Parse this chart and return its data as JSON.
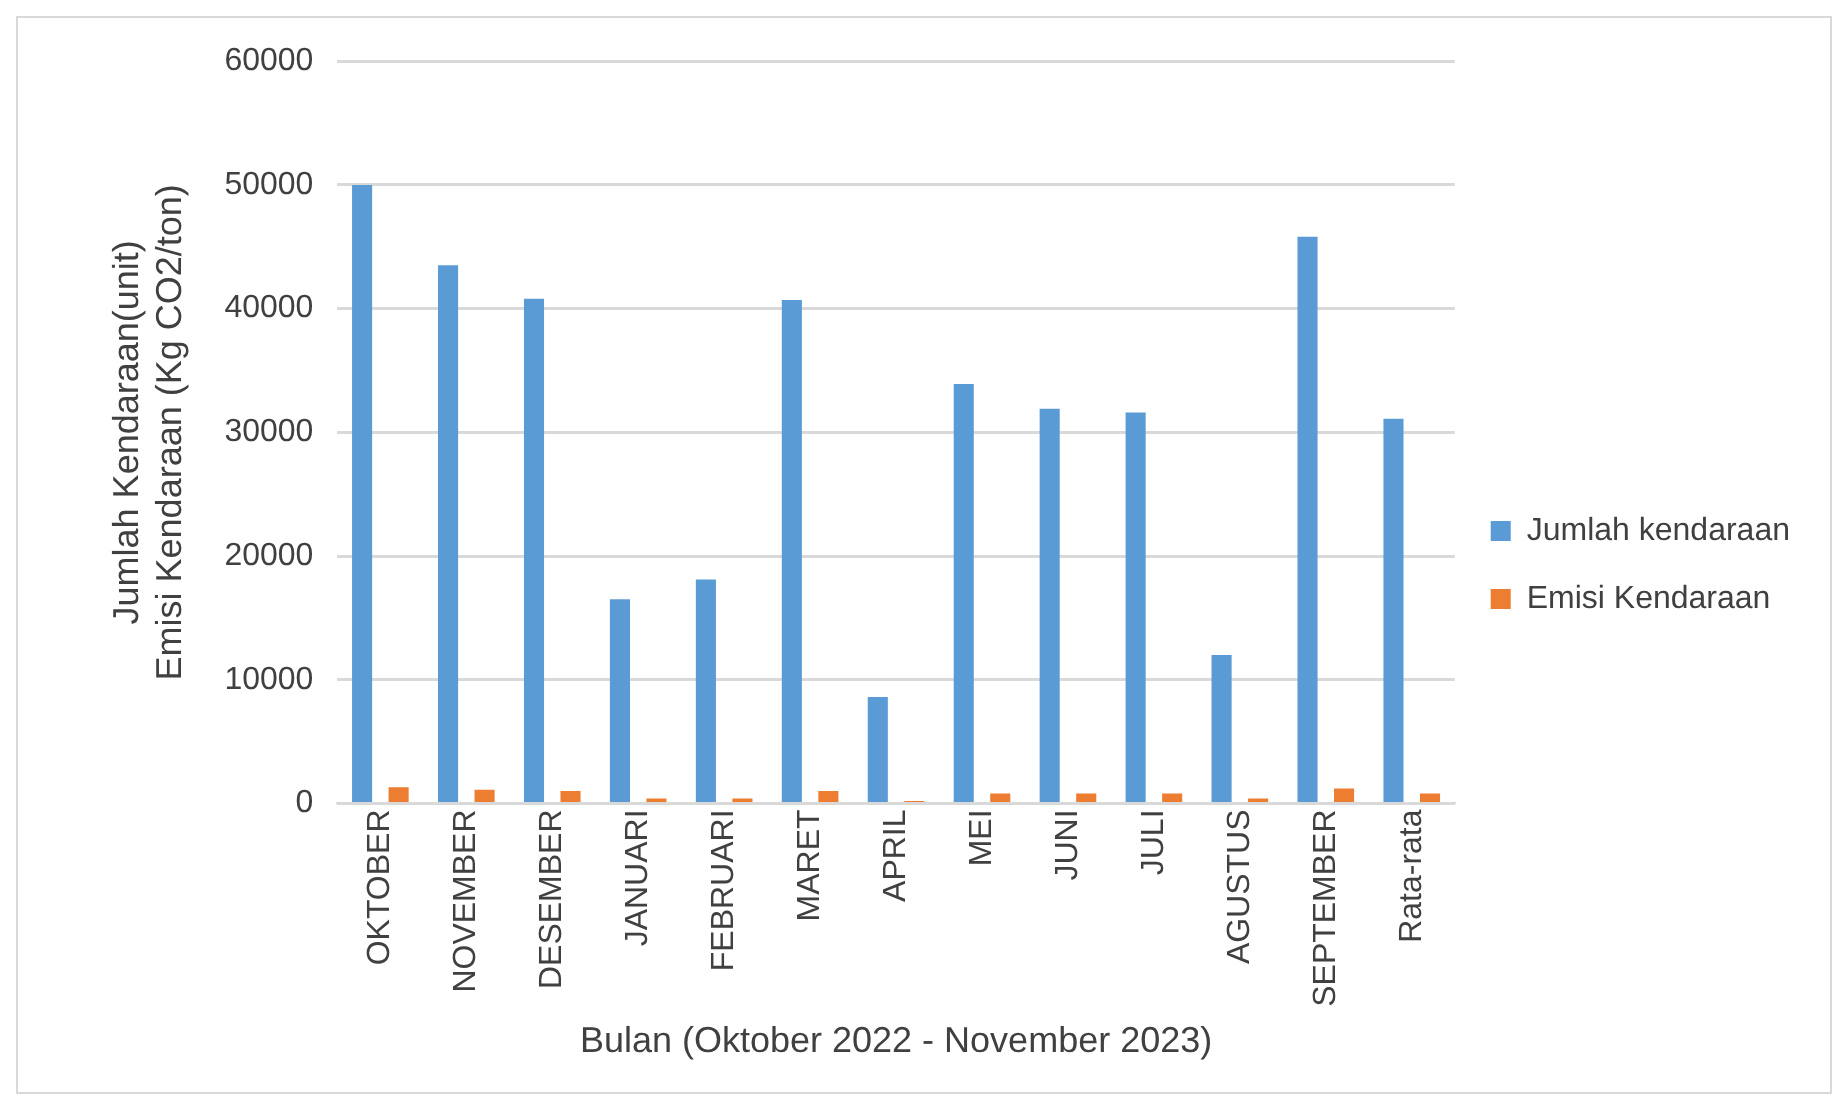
{
  "chart_data": {
    "type": "bar",
    "xlabel": "Bulan (Oktober 2022 - November 2023)",
    "ylabel": "Jumlah Kendaraan(unit)\nEmisi Kendaraan (Kg CO2/ton)",
    "categories": [
      "OKTOBER",
      "NOVEMBER",
      "DESEMBER",
      "JANUARI",
      "FEBRUARI",
      "MARET",
      "APRIL",
      "MEI",
      "JUNI",
      "JULI",
      "AGUSTUS",
      "SEPTEMBER",
      "Rata-rata"
    ],
    "series": [
      {
        "name": "Jumlah kendaraan",
        "color": "#5b9bd5",
        "values": [
          50000,
          43500,
          40800,
          16500,
          18100,
          40700,
          8600,
          33900,
          31900,
          31600,
          12000,
          45800,
          31100
        ]
      },
      {
        "name": "Emisi Kendaraan",
        "color": "#ed7d31",
        "values": [
          1300,
          1100,
          1000,
          400,
          400,
          1000,
          200,
          800,
          800,
          800,
          400,
          1200,
          800
        ]
      }
    ],
    "ylim": [
      0,
      60000
    ],
    "yticks": [
      0,
      10000,
      20000,
      30000,
      40000,
      50000,
      60000
    ],
    "grid": "y",
    "legend": "right"
  }
}
